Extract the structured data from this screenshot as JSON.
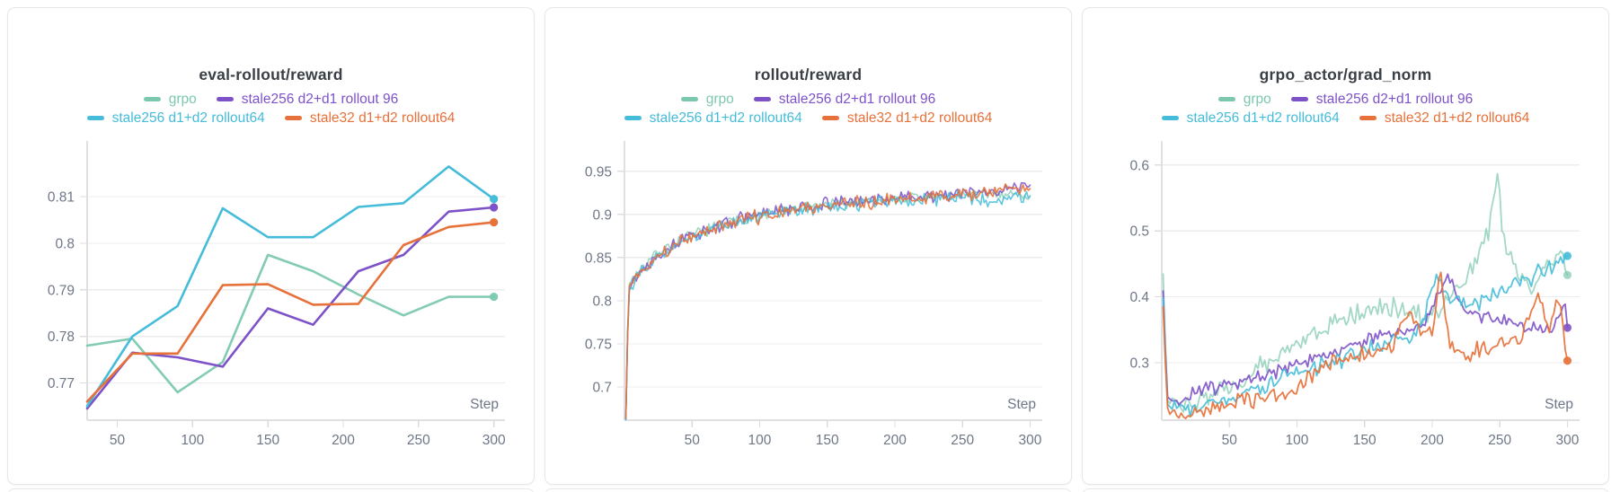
{
  "page": {
    "background": "#ffffff",
    "card_border": "#e7e7e7"
  },
  "axis": {
    "tick_color": "#6e7787",
    "grid_color": "#ececec",
    "axis_color": "#e0e0e0",
    "step_label": "Step"
  },
  "chart_data": [
    {
      "type": "line",
      "title": "eval-rollout/reward",
      "xlabel": "Step",
      "x_ticks": [
        50,
        100,
        150,
        200,
        250,
        300
      ],
      "xlim": [
        30,
        302
      ],
      "ylim": [
        0.762,
        0.8212
      ],
      "y_ticks": [
        0.77,
        0.78,
        0.79,
        0.8,
        0.81
      ],
      "grid": "horizontal",
      "legend_position": "top",
      "line_width": 2.6,
      "series": [
        {
          "name": "grpo",
          "color": "#7cc8ae",
          "opacity": 0.95,
          "end_dot": true,
          "points": [
            [
              30,
              0.778
            ],
            [
              60,
              0.7795
            ],
            [
              90,
              0.768
            ],
            [
              120,
              0.7745
            ],
            [
              150,
              0.7975
            ],
            [
              180,
              0.794
            ],
            [
              210,
              0.789
            ],
            [
              240,
              0.7845
            ],
            [
              270,
              0.7885
            ],
            [
              300,
              0.7885
            ]
          ]
        },
        {
          "name": "stale256 d2+d1 rollout 96",
          "color": "#7d52c8",
          "opacity": 1,
          "end_dot": true,
          "points": [
            [
              30,
              0.7645
            ],
            [
              60,
              0.7765
            ],
            [
              90,
              0.7755
            ],
            [
              120,
              0.7735
            ],
            [
              150,
              0.786
            ],
            [
              180,
              0.7825
            ],
            [
              210,
              0.794
            ],
            [
              240,
              0.7975
            ],
            [
              270,
              0.8068
            ],
            [
              300,
              0.8077
            ]
          ]
        },
        {
          "name": "stale256 d1+d2 rollout64",
          "color": "#45bcd9",
          "opacity": 1,
          "end_dot": true,
          "points": [
            [
              30,
              0.765
            ],
            [
              60,
              0.78
            ],
            [
              90,
              0.7865
            ],
            [
              120,
              0.8075
            ],
            [
              150,
              0.8013
            ],
            [
              180,
              0.8013
            ],
            [
              210,
              0.8078
            ],
            [
              240,
              0.8086
            ],
            [
              270,
              0.8165
            ],
            [
              300,
              0.8095
            ]
          ]
        },
        {
          "name": "stale32 d1+d2 rollout64",
          "color": "#e7713a",
          "opacity": 1,
          "end_dot": true,
          "points": [
            [
              30,
              0.766
            ],
            [
              60,
              0.7763
            ],
            [
              90,
              0.7763
            ],
            [
              120,
              0.791
            ],
            [
              150,
              0.7912
            ],
            [
              180,
              0.7868
            ],
            [
              210,
              0.787
            ],
            [
              240,
              0.7996
            ],
            [
              270,
              0.8035
            ],
            [
              300,
              0.8045
            ]
          ]
        }
      ]
    },
    {
      "type": "line",
      "title": "rollout/reward",
      "xlabel": "Step",
      "x_ticks": [
        50,
        100,
        150,
        200,
        250,
        300
      ],
      "xlim": [
        0,
        303
      ],
      "ylim": [
        0.6615,
        0.981
      ],
      "y_ticks": [
        0.7,
        0.75,
        0.8,
        0.85,
        0.9,
        0.95
      ],
      "grid": "horizontal",
      "legend_position": "top",
      "line_width": 1.6,
      "clamp": [
        0.662,
        0.956
      ],
      "series": [
        {
          "name": "grpo",
          "color": "#7cc8ae",
          "opacity": 0.75,
          "end_dot": false,
          "seed": 7,
          "n_points": 230,
          "noise_amplitude": 0.008,
          "trend": [
            [
              1,
              0.663
            ],
            [
              3,
              0.818
            ],
            [
              8,
              0.83
            ],
            [
              15,
              0.842
            ],
            [
              25,
              0.856
            ],
            [
              40,
              0.869
            ],
            [
              55,
              0.879
            ],
            [
              70,
              0.887
            ],
            [
              90,
              0.896
            ],
            [
              110,
              0.902
            ],
            [
              130,
              0.907
            ],
            [
              150,
              0.911
            ],
            [
              170,
              0.914
            ],
            [
              190,
              0.917
            ],
            [
              210,
              0.919
            ],
            [
              230,
              0.921
            ],
            [
              250,
              0.923
            ],
            [
              270,
              0.924
            ],
            [
              285,
              0.924
            ],
            [
              300,
              0.922
            ]
          ]
        },
        {
          "name": "stale256 d2+d1 rollout 96",
          "color": "#7d52c8",
          "opacity": 0.85,
          "end_dot": false,
          "seed": 13,
          "n_points": 230,
          "noise_amplitude": 0.009,
          "trend": [
            [
              1,
              0.663
            ],
            [
              3,
              0.812
            ],
            [
              8,
              0.826
            ],
            [
              15,
              0.84
            ],
            [
              25,
              0.854
            ],
            [
              40,
              0.868
            ],
            [
              55,
              0.878
            ],
            [
              70,
              0.887
            ],
            [
              90,
              0.897
            ],
            [
              110,
              0.903
            ],
            [
              130,
              0.908
            ],
            [
              150,
              0.912
            ],
            [
              170,
              0.915
            ],
            [
              190,
              0.918
            ],
            [
              210,
              0.92
            ],
            [
              230,
              0.922
            ],
            [
              250,
              0.924
            ],
            [
              270,
              0.926
            ],
            [
              285,
              0.93
            ],
            [
              300,
              0.934
            ]
          ]
        },
        {
          "name": "stale256 d1+d2 rollout64",
          "color": "#45bcd9",
          "opacity": 0.85,
          "end_dot": false,
          "seed": 29,
          "n_points": 230,
          "noise_amplitude": 0.009,
          "trend": [
            [
              1,
              0.663
            ],
            [
              3,
              0.81
            ],
            [
              8,
              0.825
            ],
            [
              15,
              0.838
            ],
            [
              25,
              0.852
            ],
            [
              40,
              0.866
            ],
            [
              55,
              0.876
            ],
            [
              70,
              0.885
            ],
            [
              90,
              0.894
            ],
            [
              110,
              0.9
            ],
            [
              130,
              0.905
            ],
            [
              150,
              0.909
            ],
            [
              170,
              0.912
            ],
            [
              190,
              0.915
            ],
            [
              210,
              0.917
            ],
            [
              230,
              0.918
            ],
            [
              250,
              0.919
            ],
            [
              270,
              0.917
            ],
            [
              285,
              0.919
            ],
            [
              300,
              0.921
            ]
          ]
        },
        {
          "name": "stale32 d1+d2 rollout64",
          "color": "#e7713a",
          "opacity": 0.9,
          "end_dot": false,
          "seed": 41,
          "n_points": 230,
          "noise_amplitude": 0.01,
          "trend": [
            [
              1,
              0.663
            ],
            [
              3,
              0.815
            ],
            [
              8,
              0.827
            ],
            [
              15,
              0.839
            ],
            [
              25,
              0.853
            ],
            [
              40,
              0.867
            ],
            [
              55,
              0.877
            ],
            [
              70,
              0.886
            ],
            [
              90,
              0.895
            ],
            [
              110,
              0.901
            ],
            [
              130,
              0.906
            ],
            [
              150,
              0.91
            ],
            [
              170,
              0.913
            ],
            [
              190,
              0.916
            ],
            [
              210,
              0.918
            ],
            [
              230,
              0.92
            ],
            [
              250,
              0.922
            ],
            [
              270,
              0.925
            ],
            [
              285,
              0.929
            ],
            [
              300,
              0.93
            ]
          ]
        }
      ]
    },
    {
      "type": "line",
      "title": "grpo_actor/grad_norm",
      "xlabel": "Step",
      "x_ticks": [
        50,
        100,
        150,
        200,
        250,
        300
      ],
      "xlim": [
        0,
        303
      ],
      "ylim": [
        0.2127,
        0.631
      ],
      "y_ticks": [
        0.3,
        0.4,
        0.5,
        0.6
      ],
      "grid": "horizontal",
      "legend_position": "top",
      "line_width": 1.8,
      "clamp": [
        0.214,
        0.607
      ],
      "series": [
        {
          "name": "grpo",
          "color": "#7cc8ae",
          "opacity": 0.7,
          "end_dot": true,
          "seed": 53,
          "n_points": 180,
          "noise_amplitude": 0.018,
          "trend": [
            [
              1,
              0.435
            ],
            [
              4,
              0.245
            ],
            [
              12,
              0.228
            ],
            [
              25,
              0.242
            ],
            [
              40,
              0.252
            ],
            [
              60,
              0.272
            ],
            [
              75,
              0.298
            ],
            [
              90,
              0.32
            ],
            [
              110,
              0.344
            ],
            [
              130,
              0.362
            ],
            [
              150,
              0.378
            ],
            [
              165,
              0.388
            ],
            [
              180,
              0.38
            ],
            [
              195,
              0.37
            ],
            [
              210,
              0.39
            ],
            [
              222,
              0.42
            ],
            [
              232,
              0.455
            ],
            [
              242,
              0.5
            ],
            [
              248,
              0.585
            ],
            [
              252,
              0.5
            ],
            [
              258,
              0.455
            ],
            [
              266,
              0.43
            ],
            [
              274,
              0.412
            ],
            [
              282,
              0.438
            ],
            [
              290,
              0.452
            ],
            [
              296,
              0.47
            ],
            [
              300,
              0.433
            ]
          ]
        },
        {
          "name": "stale256 d2+d1 rollout 96",
          "color": "#7d52c8",
          "opacity": 0.9,
          "end_dot": true,
          "seed": 67,
          "n_points": 180,
          "noise_amplitude": 0.013,
          "trend": [
            [
              1,
              0.408
            ],
            [
              4,
              0.248
            ],
            [
              12,
              0.24
            ],
            [
              25,
              0.256
            ],
            [
              40,
              0.262
            ],
            [
              60,
              0.272
            ],
            [
              80,
              0.284
            ],
            [
              100,
              0.3
            ],
            [
              120,
              0.312
            ],
            [
              140,
              0.326
            ],
            [
              160,
              0.338
            ],
            [
              180,
              0.35
            ],
            [
              195,
              0.362
            ],
            [
              207,
              0.415
            ],
            [
              213,
              0.432
            ],
            [
              220,
              0.388
            ],
            [
              232,
              0.372
            ],
            [
              246,
              0.362
            ],
            [
              260,
              0.358
            ],
            [
              274,
              0.35
            ],
            [
              286,
              0.348
            ],
            [
              294,
              0.368
            ],
            [
              298,
              0.395
            ],
            [
              300,
              0.353
            ]
          ]
        },
        {
          "name": "stale256 d1+d2 rollout64",
          "color": "#45bcd9",
          "opacity": 0.9,
          "end_dot": true,
          "seed": 71,
          "n_points": 180,
          "noise_amplitude": 0.016,
          "trend": [
            [
              1,
              0.398
            ],
            [
              4,
              0.238
            ],
            [
              12,
              0.228
            ],
            [
              25,
              0.235
            ],
            [
              40,
              0.241
            ],
            [
              60,
              0.252
            ],
            [
              80,
              0.266
            ],
            [
              100,
              0.285
            ],
            [
              120,
              0.298
            ],
            [
              140,
              0.31
            ],
            [
              160,
              0.323
            ],
            [
              180,
              0.337
            ],
            [
              193,
              0.356
            ],
            [
              203,
              0.438
            ],
            [
              210,
              0.405
            ],
            [
              220,
              0.392
            ],
            [
              232,
              0.388
            ],
            [
              244,
              0.398
            ],
            [
              256,
              0.41
            ],
            [
              268,
              0.425
            ],
            [
              280,
              0.438
            ],
            [
              290,
              0.448
            ],
            [
              296,
              0.458
            ],
            [
              300,
              0.462
            ]
          ]
        },
        {
          "name": "stale32 d1+d2 rollout64",
          "color": "#e7713a",
          "opacity": 0.92,
          "end_dot": true,
          "seed": 83,
          "n_points": 180,
          "noise_amplitude": 0.016,
          "trend": [
            [
              1,
              0.385
            ],
            [
              4,
              0.232
            ],
            [
              12,
              0.218
            ],
            [
              25,
              0.223
            ],
            [
              40,
              0.232
            ],
            [
              60,
              0.242
            ],
            [
              80,
              0.248
            ],
            [
              100,
              0.256
            ],
            [
              112,
              0.285
            ],
            [
              125,
              0.3
            ],
            [
              140,
              0.308
            ],
            [
              155,
              0.316
            ],
            [
              170,
              0.322
            ],
            [
              182,
              0.38
            ],
            [
              190,
              0.352
            ],
            [
              200,
              0.34
            ],
            [
              206,
              0.442
            ],
            [
              212,
              0.33
            ],
            [
              224,
              0.312
            ],
            [
              238,
              0.322
            ],
            [
              252,
              0.33
            ],
            [
              266,
              0.338
            ],
            [
              278,
              0.405
            ],
            [
              286,
              0.35
            ],
            [
              293,
              0.398
            ],
            [
              300,
              0.303
            ]
          ]
        }
      ]
    }
  ]
}
